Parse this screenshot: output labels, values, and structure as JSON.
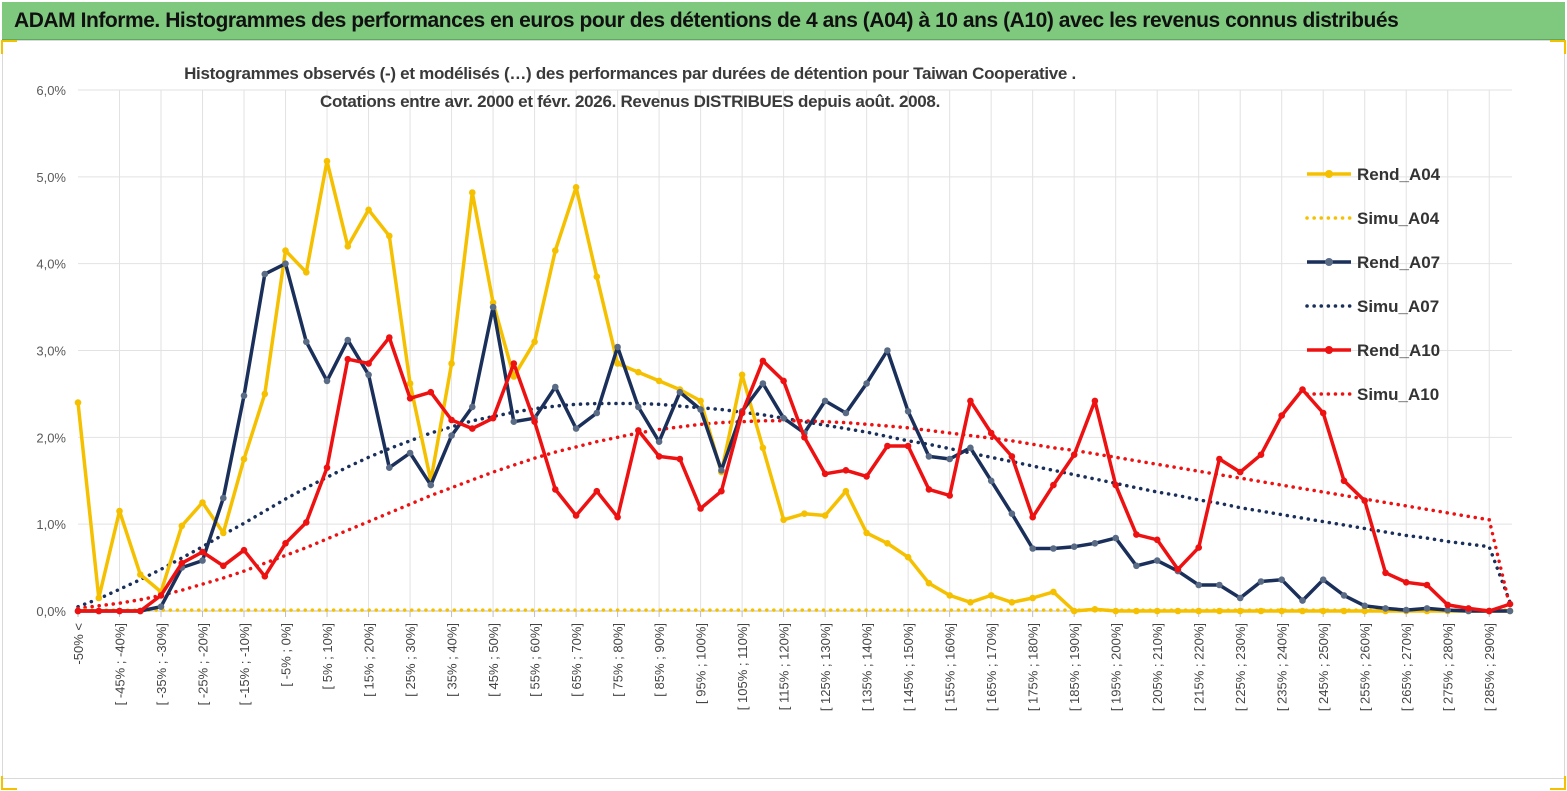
{
  "header": {
    "title": "ADAM Informe. Histogrammes des performances en euros pour des détentions de 4 ans (A04) à 10 ans (A10) avec les revenus connus distribués"
  },
  "chart_data": {
    "type": "line",
    "title_line1": "Histogrammes observés (-) et modélisés (…)  des performances par durées de détention pour Taiwan Cooperative .",
    "title_line2": "Cotations entre avr. 2000 et févr. 2026. Revenus DISTRIBUES depuis août. 2008.",
    "ylim": [
      0,
      6
    ],
    "yticks": [
      "0,0%",
      "1,0%",
      "2,0%",
      "3,0%",
      "4,0%",
      "5,0%",
      "6,0%"
    ],
    "x_tick_labels": [
      "-50% <",
      "[ -45% ; -40%]",
      "[ -35% ; -30%]",
      "[ -25% ; -20%]",
      "[ -15% ; -10%]",
      "[ -5% ; 0%]",
      "[ 5% ; 10%]",
      "[ 15% ; 20%]",
      "[ 25% ; 30%]",
      "[ 35% ; 40%]",
      "[ 45% ; 50%]",
      "[ 55% ; 60%]",
      "[ 65% ; 70%]",
      "[ 75% ; 80%]",
      "[ 85% ; 90%]",
      "[ 95% ; 100%]",
      "[ 105% ; 110%]",
      "[ 115% ; 120%]",
      "[ 125% ; 130%]",
      "[ 135% ; 140%]",
      "[ 145% ; 150%]",
      "[ 155% ; 160%]",
      "[ 165% ; 170%]",
      "[ 175% ; 180%]",
      "[ 185% ; 190%]",
      "[ 195% ; 200%]",
      "[ 205% ; 210%]",
      "[ 215% ; 220%]",
      "[ 225% ; 230%]",
      "[ 235% ; 240%]",
      "[ 245% ; 250%]",
      "[ 255% ; 260%]",
      "[ 265% ; 270%]",
      "[ 275% ; 280%]",
      "[ 285% ; 290%]"
    ],
    "n_bins": 70,
    "series": [
      {
        "name": "Rend_A04",
        "style": "solid",
        "color": "#f5c000",
        "values": [
          2.4,
          0.15,
          1.15,
          0.42,
          0.22,
          0.98,
          1.25,
          0.9,
          1.75,
          2.5,
          4.15,
          3.9,
          5.18,
          4.2,
          4.62,
          4.32,
          2.62,
          1.5,
          2.85,
          4.82,
          3.55,
          2.7,
          3.1,
          4.15,
          4.88,
          3.85,
          2.85,
          2.75,
          2.65,
          2.55,
          2.42,
          1.6,
          2.72,
          1.88,
          1.05,
          1.12,
          1.1,
          1.38,
          0.9,
          0.78,
          0.62,
          0.32,
          0.18,
          0.1,
          0.18,
          0.1,
          0.15,
          0.22,
          0.0,
          0.02,
          0.0,
          0.0,
          0.0,
          0.0,
          0.0,
          0.0,
          0.0,
          0.0,
          0.0,
          0.0,
          0.0,
          0.0,
          0.0,
          0.0,
          0.0,
          0.0,
          0.0,
          0.0,
          0.0,
          0.0
        ]
      },
      {
        "name": "Simu_A04",
        "style": "dotted",
        "color": "#f5c000",
        "values": [
          0.01,
          0.01,
          0.01,
          0.01,
          0.01,
          0.01,
          0.01,
          0.01,
          0.01,
          0.01,
          0.01,
          0.01,
          0.01,
          0.01,
          0.01,
          0.01,
          0.01,
          0.01,
          0.01,
          0.01,
          0.01,
          0.01,
          0.01,
          0.01,
          0.01,
          0.01,
          0.01,
          0.01,
          0.01,
          0.01,
          0.01,
          0.01,
          0.01,
          0.01,
          0.01,
          0.01,
          0.01,
          0.01,
          0.01,
          0.01,
          0.01,
          0.01,
          0.01,
          0.01,
          0.01,
          0.01,
          0.01,
          0.01,
          0.01,
          0.01,
          0.01,
          0.01,
          0.01,
          0.01,
          0.01,
          0.01,
          0.01,
          0.01,
          0.01,
          0.01,
          0.01,
          0.01,
          0.01,
          0.01,
          0.01,
          0.01,
          0.01,
          0.01,
          0.01,
          0.01
        ]
      },
      {
        "name": "Rend_A07",
        "style": "solid",
        "color": "#1a2f5a",
        "values": [
          0.0,
          0.0,
          0.0,
          0.0,
          0.05,
          0.5,
          0.58,
          1.3,
          2.48,
          3.88,
          4.0,
          3.1,
          2.65,
          3.12,
          2.72,
          1.65,
          1.82,
          1.45,
          2.02,
          2.35,
          3.5,
          2.18,
          2.22,
          2.58,
          2.1,
          2.28,
          3.04,
          2.35,
          1.95,
          2.52,
          2.32,
          1.62,
          2.3,
          2.62,
          2.22,
          2.05,
          2.42,
          2.28,
          2.62,
          3.0,
          2.3,
          1.78,
          1.75,
          1.88,
          1.5,
          1.12,
          0.72,
          0.72,
          0.74,
          0.78,
          0.84,
          0.52,
          0.58,
          0.46,
          0.3,
          0.3,
          0.15,
          0.34,
          0.36,
          0.12,
          0.36,
          0.18,
          0.06,
          0.03,
          0.01,
          0.03,
          0.01,
          0.0,
          0.0,
          0.0
        ]
      },
      {
        "name": "Simu_A07",
        "style": "dotted",
        "color": "#1a2f5a",
        "values": [
          0.05,
          0.14,
          0.25,
          0.36,
          0.48,
          0.61,
          0.74,
          0.88,
          1.01,
          1.15,
          1.29,
          1.42,
          1.54,
          1.66,
          1.77,
          1.87,
          1.96,
          2.05,
          2.12,
          2.19,
          2.24,
          2.29,
          2.33,
          2.36,
          2.38,
          2.39,
          2.39,
          2.39,
          2.38,
          2.36,
          2.34,
          2.32,
          2.29,
          2.26,
          2.22,
          2.18,
          2.14,
          2.1,
          2.06,
          2.01,
          1.96,
          1.92,
          1.87,
          1.82,
          1.77,
          1.72,
          1.67,
          1.62,
          1.57,
          1.52,
          1.47,
          1.42,
          1.37,
          1.33,
          1.28,
          1.24,
          1.19,
          1.15,
          1.11,
          1.07,
          1.03,
          0.99,
          0.95,
          0.91,
          0.87,
          0.84,
          0.8,
          0.77,
          0.74,
          0.1
        ]
      },
      {
        "name": "Rend_A10",
        "style": "solid",
        "color": "#ee1111",
        "values": [
          0.0,
          0.0,
          0.0,
          0.0,
          0.18,
          0.55,
          0.68,
          0.52,
          0.7,
          0.4,
          0.78,
          1.02,
          1.65,
          2.9,
          2.85,
          3.15,
          2.45,
          2.52,
          2.2,
          2.1,
          2.22,
          2.85,
          2.18,
          1.4,
          1.1,
          1.38,
          1.08,
          2.08,
          1.78,
          1.75,
          1.18,
          1.38,
          2.28,
          2.88,
          2.65,
          2.0,
          1.58,
          1.62,
          1.55,
          1.9,
          1.9,
          1.4,
          1.33,
          2.42,
          2.05,
          1.78,
          1.08,
          1.45,
          1.8,
          2.42,
          1.45,
          0.88,
          0.82,
          0.48,
          0.73,
          1.75,
          1.6,
          1.8,
          2.25,
          2.55,
          2.28,
          1.5,
          1.27,
          0.44,
          0.33,
          0.3,
          0.07,
          0.03,
          0.0,
          0.08
        ]
      },
      {
        "name": "Simu_A10",
        "style": "dotted",
        "color": "#ee1111",
        "values": [
          0.03,
          0.06,
          0.09,
          0.13,
          0.18,
          0.24,
          0.31,
          0.38,
          0.46,
          0.55,
          0.64,
          0.73,
          0.83,
          0.93,
          1.03,
          1.13,
          1.23,
          1.33,
          1.42,
          1.51,
          1.6,
          1.68,
          1.76,
          1.83,
          1.89,
          1.95,
          2.0,
          2.05,
          2.09,
          2.12,
          2.15,
          2.17,
          2.18,
          2.19,
          2.19,
          2.19,
          2.18,
          2.17,
          2.15,
          2.13,
          2.11,
          2.08,
          2.05,
          2.02,
          1.99,
          1.96,
          1.92,
          1.88,
          1.85,
          1.81,
          1.77,
          1.73,
          1.69,
          1.65,
          1.61,
          1.57,
          1.53,
          1.49,
          1.45,
          1.41,
          1.37,
          1.33,
          1.29,
          1.25,
          1.21,
          1.17,
          1.13,
          1.09,
          1.05,
          0.05
        ]
      }
    ]
  },
  "legend": {
    "items": [
      {
        "label": "Rend_A04"
      },
      {
        "label": "Simu_A04"
      },
      {
        "label": "Rend_A07"
      },
      {
        "label": "Simu_A07"
      },
      {
        "label": "Rend_A10"
      },
      {
        "label": "Simu_A10"
      }
    ]
  }
}
